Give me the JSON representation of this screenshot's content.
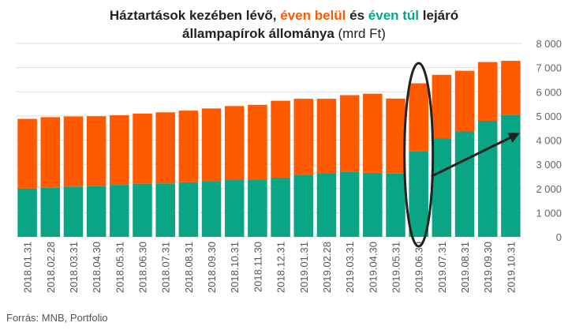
{
  "title": {
    "part1": "Háztartások kezében lévő,",
    "within": "éven belül",
    "and": "és",
    "beyond": "éven túl",
    "part2": "lejáró",
    "line2": "állampapírok állománya",
    "unit": "(mrd Ft)"
  },
  "source": "Forrás: MNB, Portfolio",
  "colors": {
    "within": "#ff5a00",
    "beyond": "#0aa585",
    "grid": "#dddddd",
    "annotation": "#222222"
  },
  "chart_data": {
    "type": "bar",
    "stacked": true,
    "categories": [
      "2018.01.31",
      "2018.02.28",
      "2018.03.31",
      "2018.04.30",
      "2018.05.31",
      "2018.06.30",
      "2018.07.31",
      "2018.08.31",
      "2018.09.30",
      "2018.10.31",
      "2018.11.30",
      "2018.12.31",
      "2019.01.31",
      "2019.02.28",
      "2019.03.31",
      "2019.04.30",
      "2019.05.31",
      "2019.06.30",
      "2019.07.31",
      "2019.08.31",
      "2019.09.30",
      "2019.10.31"
    ],
    "series": [
      {
        "key": "beyond",
        "values": [
          2000,
          2030,
          2080,
          2100,
          2150,
          2200,
          2210,
          2260,
          2300,
          2350,
          2370,
          2450,
          2560,
          2630,
          2680,
          2650,
          2620,
          3550,
          4080,
          4360,
          4800,
          5050
        ]
      },
      {
        "key": "within",
        "values": [
          2880,
          2920,
          2900,
          2890,
          2880,
          2900,
          2940,
          2960,
          3010,
          3060,
          3090,
          3180,
          3150,
          3080,
          3180,
          3270,
          3100,
          2800,
          2620,
          2510,
          2430,
          2230
        ]
      }
    ],
    "ylim": [
      0,
      8000
    ],
    "yticks": [
      0,
      1000,
      2000,
      3000,
      4000,
      5000,
      6000,
      7000,
      8000
    ],
    "ytick_labels": [
      "0",
      "1 000",
      "2 000",
      "3 000",
      "4 000",
      "5 000",
      "6 000",
      "7 000",
      "8 000"
    ],
    "y_axis_side": "right",
    "grid": true,
    "highlight_category": "2019.06.30",
    "trend_arrow": {
      "from_category": "2019.07.31",
      "from_value": 2500,
      "to_category": "2019.10.31",
      "to_value": 4300
    }
  }
}
